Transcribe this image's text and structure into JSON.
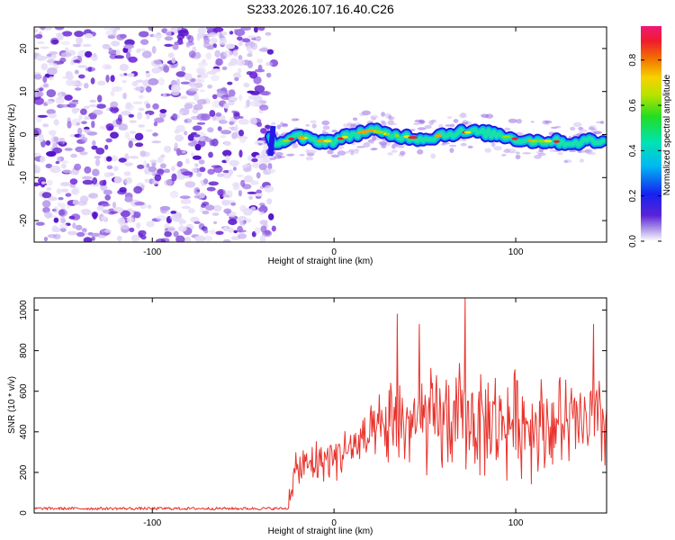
{
  "title": "S233.2026.107.16.40.C26",
  "chart_data": [
    {
      "type": "heatmap",
      "name": "spectrogram",
      "xlabel": "Height of straight line (km)",
      "ylabel": "Frequency (Hz)",
      "xlim": [
        -165,
        150
      ],
      "ylim": [
        -25,
        25
      ],
      "xticks": [
        -100,
        0,
        100
      ],
      "yticks": [
        -20,
        -10,
        0,
        10,
        20
      ],
      "noise_region": {
        "x_range": [
          -165,
          -35
        ],
        "description": "diffuse purple noise"
      },
      "signal_transition_x": -35,
      "signal_track": {
        "x": [
          -35,
          -30,
          -20,
          -10,
          0,
          10,
          20,
          30,
          40,
          50,
          60,
          70,
          80,
          90,
          100,
          110,
          120,
          130,
          140,
          148
        ],
        "freq": [
          -1,
          -2,
          -0.5,
          -1.5,
          -1.5,
          0,
          1,
          0,
          -0.5,
          -1,
          0,
          0.5,
          0.5,
          0,
          -1,
          -1.5,
          -1.5,
          -2,
          -1.5,
          -1.5
        ]
      },
      "colorbar": {
        "label": "Normalized spectral amplitude",
        "range": [
          0.0,
          0.95
        ],
        "ticks": [
          0.0,
          0.2,
          0.4,
          0.6,
          0.8
        ],
        "tick_labels": [
          "0.0",
          "0.2",
          "0.4",
          "0.6",
          "0.8"
        ]
      }
    },
    {
      "type": "line",
      "name": "snr",
      "xlabel": "Height of straight line (km)",
      "ylabel": "SNR (10 * v/v)",
      "xlim": [
        -165,
        150
      ],
      "ylim": [
        0,
        1060
      ],
      "xticks": [
        -100,
        0,
        100
      ],
      "yticks": [
        0,
        200,
        400,
        600,
        800,
        1000
      ],
      "color": "#e8332c",
      "series": [
        {
          "name": "noise floor",
          "x_range": [
            -165,
            -25
          ],
          "mean": 22,
          "spread": 10
        },
        {
          "name": "rise",
          "x": [
            -25,
            -20,
            -10,
            0,
            10,
            20,
            30,
            40,
            50,
            60,
            70,
            80,
            90,
            100,
            110,
            120,
            130,
            140,
            150
          ],
          "mean": [
            120,
            210,
            250,
            280,
            320,
            370,
            420,
            450,
            440,
            450,
            460,
            450,
            440,
            450,
            440,
            440,
            430,
            440,
            440
          ],
          "spread": [
            80,
            110,
            120,
            120,
            150,
            150,
            250,
            280,
            290,
            300,
            300,
            290,
            290,
            280,
            280,
            270,
            270,
            270,
            260
          ]
        }
      ],
      "peaks": [
        {
          "x": 35,
          "y": 980
        },
        {
          "x": 72,
          "y": 1060
        },
        {
          "x": 47,
          "y": 930
        },
        {
          "x": 143,
          "y": 930
        }
      ]
    }
  ],
  "colors": {
    "signal_line": "#e8332c",
    "noise_purple": "#6a0dad"
  }
}
